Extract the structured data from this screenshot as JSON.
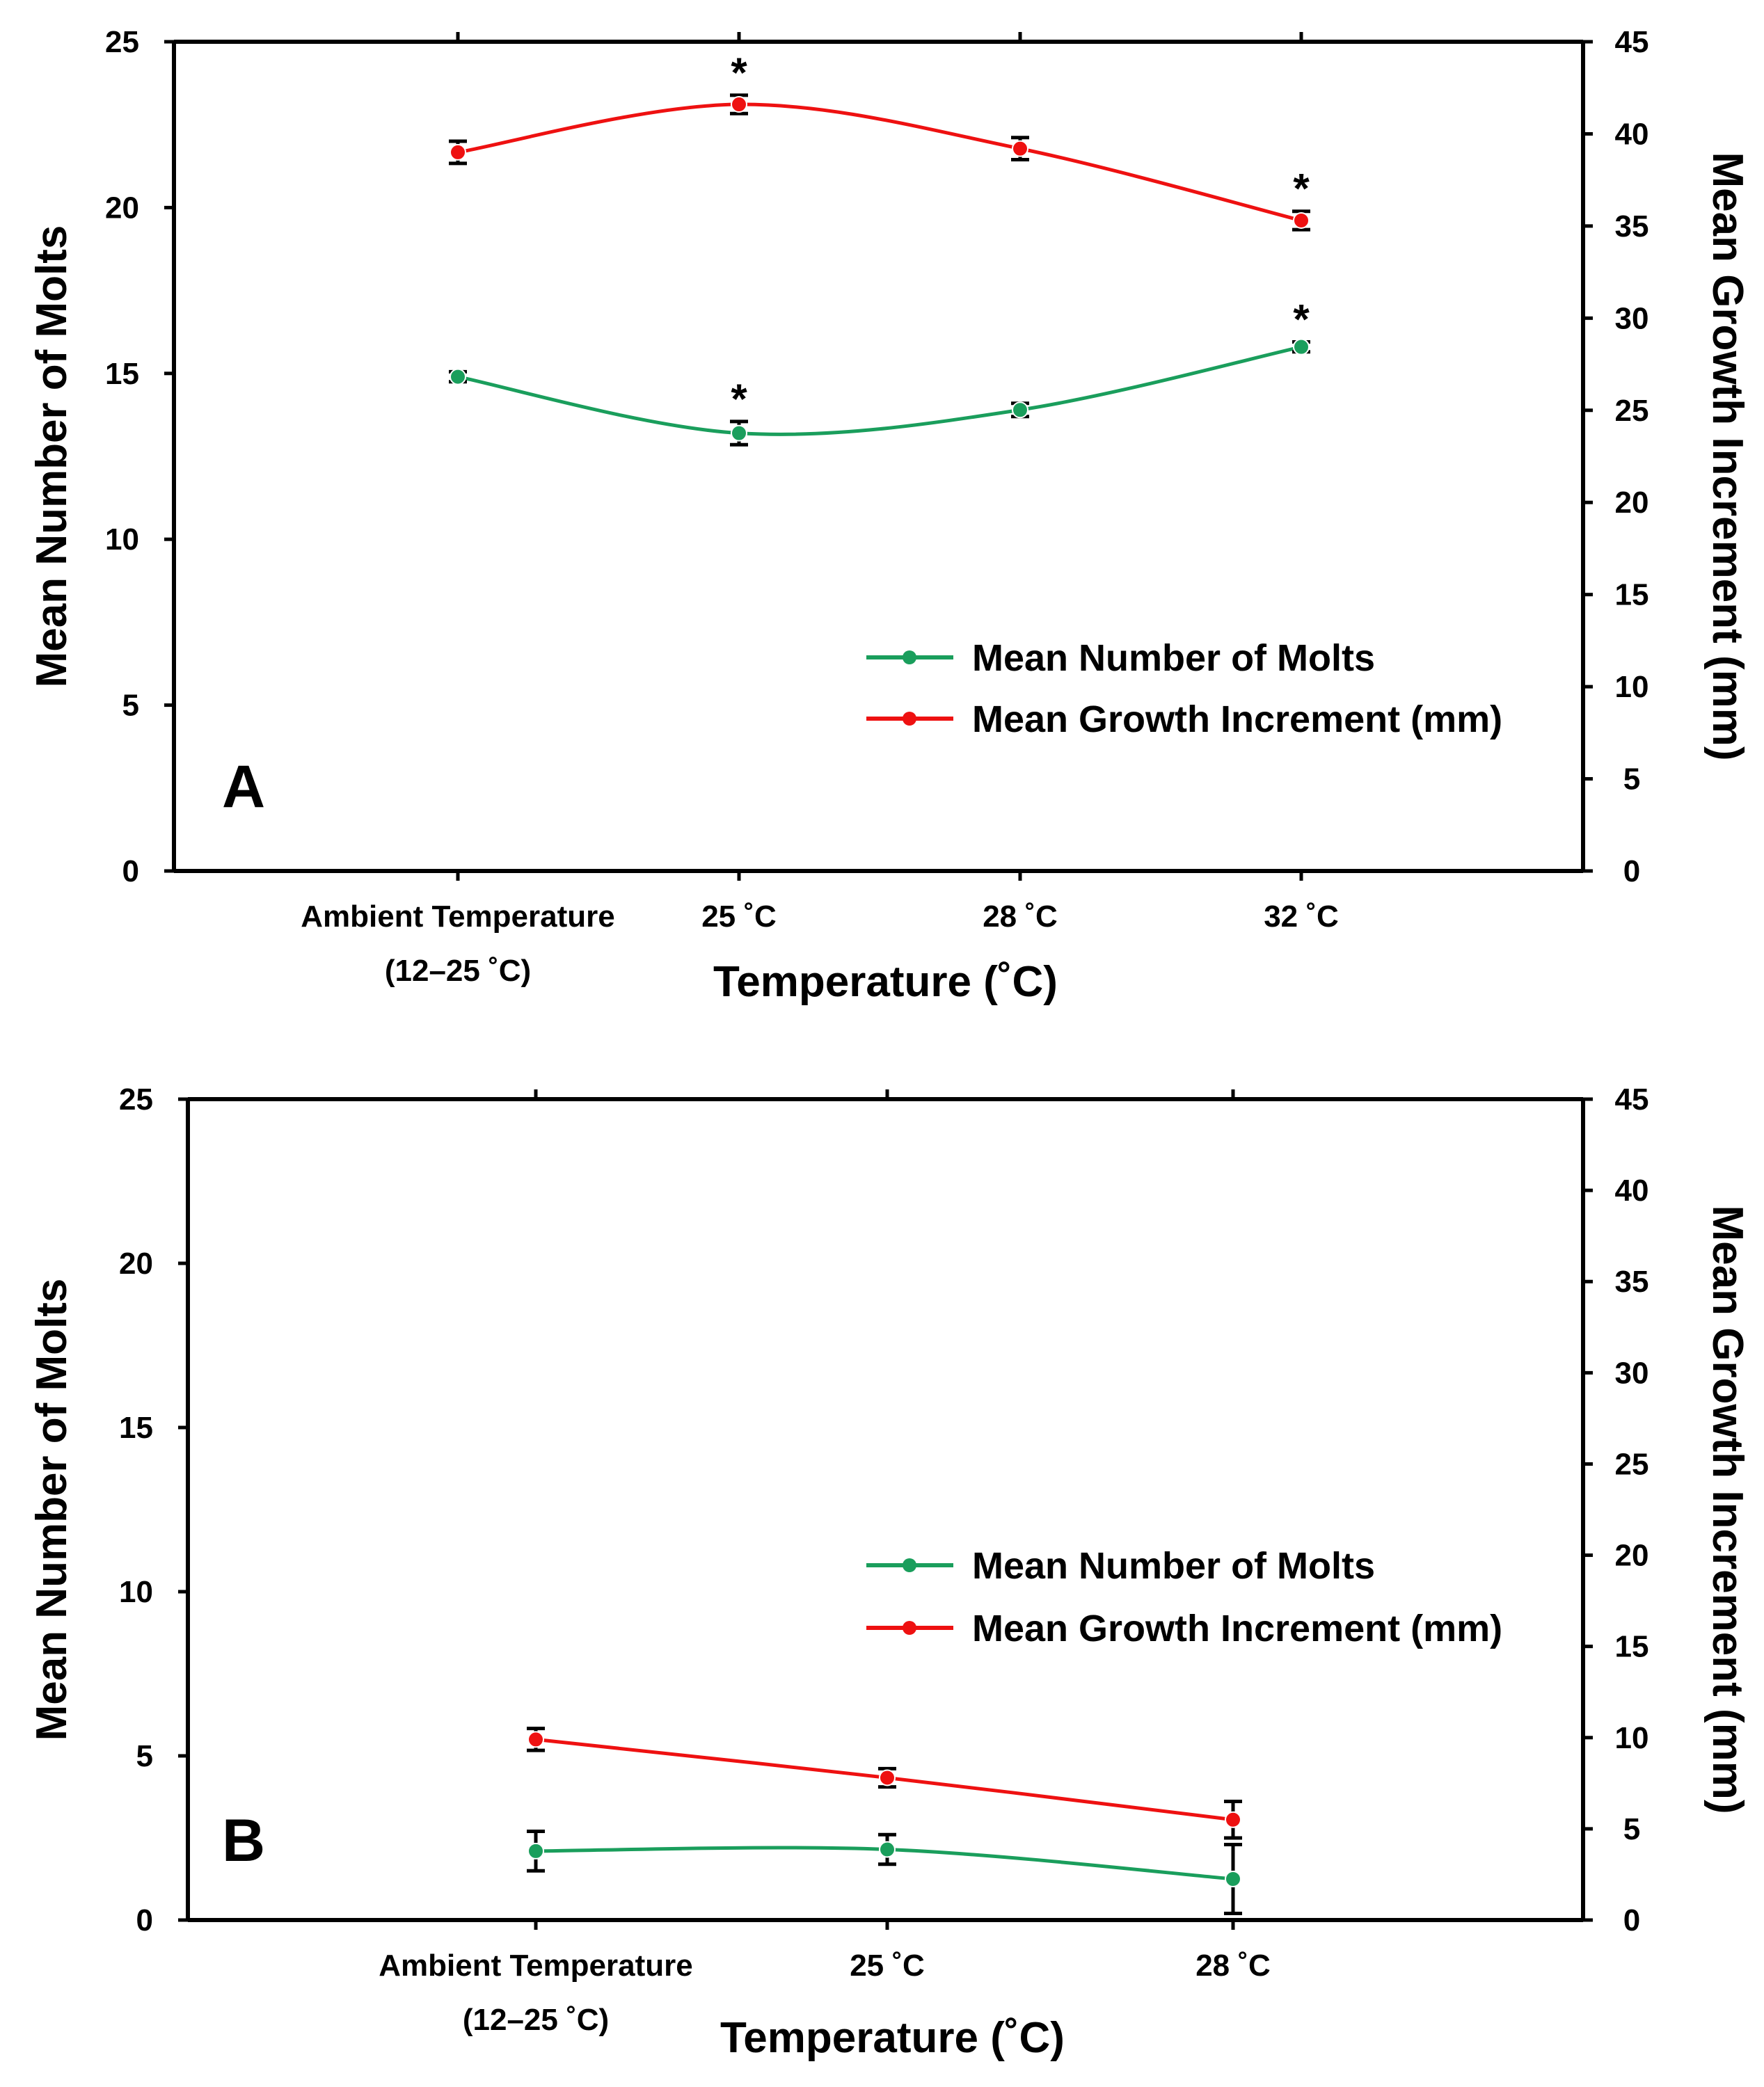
{
  "figure": {
    "colors": {
      "molts": "#1a9e5c",
      "growth": "#ee1111",
      "axis": "#000000"
    }
  },
  "chart_data": [
    {
      "type": "line",
      "panel_label": "A",
      "categories": [
        "Ambient Temperature\n(12–25 ˚C)",
        "25 ˚C",
        "28 ˚C",
        "32 ˚C"
      ],
      "xlabel": "Temperature (˚C)",
      "ylabel": "Mean Number of Molts",
      "y2label": "Mean Growth Increment (mm)",
      "ylim": [
        0,
        25
      ],
      "y2lim": [
        0,
        45
      ],
      "yticks": [
        0,
        5,
        10,
        15,
        20,
        25
      ],
      "y2ticks": [
        0,
        5,
        10,
        15,
        20,
        25,
        30,
        35,
        40,
        45
      ],
      "legend_position": "lower-right",
      "series": [
        {
          "name": "Mean Number of Molts",
          "axis": "left",
          "color": "#1a9e5c",
          "values": [
            14.9,
            13.2,
            13.9,
            15.8
          ],
          "errors": [
            0.15,
            0.35,
            0.2,
            0.15
          ],
          "significant": [
            false,
            true,
            false,
            true
          ]
        },
        {
          "name": "Mean Growth Increment (mm)",
          "axis": "right",
          "color": "#ee1111",
          "values": [
            39.0,
            41.6,
            39.2,
            35.3
          ],
          "errors": [
            0.6,
            0.5,
            0.6,
            0.5
          ],
          "significant": [
            false,
            true,
            false,
            true
          ]
        }
      ],
      "significance_marker": "*"
    },
    {
      "type": "line",
      "panel_label": "B",
      "categories": [
        "Ambient Temperature\n(12–25 ˚C)",
        "25 ˚C",
        "28 ˚C"
      ],
      "xlabel": "Temperature (˚C)",
      "ylabel": "Mean Number of Molts",
      "y2label": "Mean Growth Increment (mm)",
      "ylim": [
        0,
        25
      ],
      "y2lim": [
        0,
        45
      ],
      "yticks": [
        0,
        5,
        10,
        15,
        20,
        25
      ],
      "y2ticks": [
        0,
        5,
        10,
        15,
        20,
        25,
        30,
        35,
        40,
        45
      ],
      "legend_position": "center-right",
      "series": [
        {
          "name": "Mean Number of Molts",
          "axis": "left",
          "color": "#1a9e5c",
          "values": [
            2.1,
            2.15,
            1.25
          ],
          "errors": [
            0.6,
            0.45,
            1.05
          ],
          "significant": [
            false,
            false,
            false
          ]
        },
        {
          "name": "Mean Growth Increment (mm)",
          "axis": "right",
          "color": "#ee1111",
          "values": [
            9.9,
            7.8,
            5.5
          ],
          "errors": [
            0.6,
            0.5,
            1.0
          ],
          "significant": [
            false,
            false,
            false
          ]
        }
      ],
      "significance_marker": "*"
    }
  ]
}
